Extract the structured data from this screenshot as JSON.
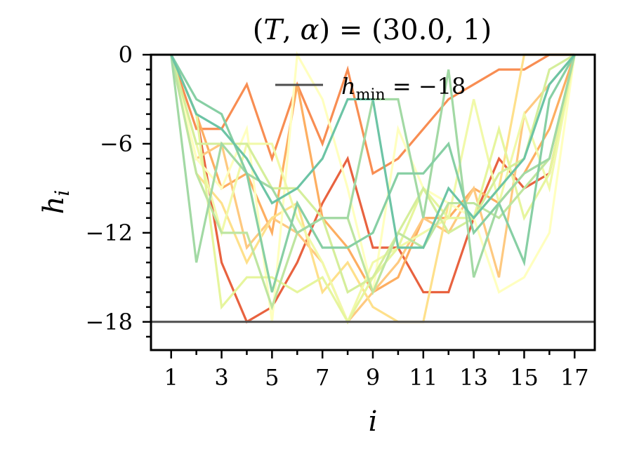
{
  "chart_data": {
    "type": "line",
    "title": "(T, α) = (30.0, 1)",
    "title_parts": {
      "open": "(",
      "T": "T",
      "sep1": ", ",
      "alpha": "α",
      "mid": ") = (30.0, 1)"
    },
    "xlabel": "i",
    "ylabel": "h",
    "ylabel_sub": "i",
    "xlim": [
      0.2,
      17.8
    ],
    "ylim": [
      -19.9,
      0
    ],
    "x": [
      1,
      2,
      3,
      4,
      5,
      6,
      7,
      8,
      9,
      10,
      11,
      12,
      13,
      14,
      15,
      16,
      17
    ],
    "x_ticks": [
      1,
      3,
      5,
      7,
      9,
      11,
      13,
      15,
      17
    ],
    "y_ticks": [
      0,
      -6,
      -12,
      -18
    ],
    "x_tick_labels": [
      "1",
      "3",
      "5",
      "7",
      "9",
      "11",
      "13",
      "15",
      "17"
    ],
    "y_tick_labels": [
      "0",
      "−6",
      "−12",
      "−18"
    ],
    "grid": false,
    "legend_position": "top-center",
    "reference_line": {
      "y": -18,
      "color": "#4d4d4d",
      "label_main": "h",
      "label_sub": "min",
      "label_rest": " = −18"
    },
    "series": [
      {
        "color": "#e8623f",
        "values": [
          0,
          -4,
          -14,
          -18,
          -17,
          -14,
          -10,
          -7,
          -13,
          -13,
          -16,
          -16,
          -11,
          -7,
          -9,
          -8,
          0
        ]
      },
      {
        "color": "#f88d52",
        "values": [
          0,
          -5,
          -5,
          -2,
          -7,
          -2,
          -6,
          -1,
          -8,
          -7,
          -5,
          -3,
          -2,
          -1,
          -1,
          0,
          0
        ]
      },
      {
        "color": "#fdae61",
        "values": [
          0,
          -4,
          -9,
          -8,
          -12,
          -2,
          -11,
          -13,
          -16,
          -15,
          -11,
          -11,
          -9,
          -10,
          -8,
          -5,
          0
        ]
      },
      {
        "color": "#fec980",
        "values": [
          0,
          -7,
          -6,
          -13,
          -11,
          -12,
          -14,
          -18,
          -16,
          -14,
          -11,
          -12,
          -9,
          -15,
          -4,
          -2,
          0
        ]
      },
      {
        "color": "#fee08b",
        "values": [
          0,
          -8,
          -10,
          -14,
          -11,
          -10,
          -16,
          -14,
          -17,
          -18,
          -18,
          -10,
          -11,
          -9,
          0,
          0,
          0
        ]
      },
      {
        "color": "#ffffbf",
        "values": [
          0,
          -7,
          -9,
          -5,
          -18,
          0,
          -3,
          -9,
          -16,
          -5,
          -9,
          -10,
          -11,
          -16,
          -15,
          -12,
          0
        ]
      },
      {
        "color": "#f1f9a9",
        "values": [
          0,
          -6,
          -12,
          -6,
          -6,
          -11,
          -14,
          -18,
          -14,
          -13,
          -12,
          -11,
          -3,
          -10,
          -4,
          -9,
          0
        ]
      },
      {
        "color": "#e6f59d",
        "values": [
          0,
          -4,
          -17,
          -15,
          -15,
          -16,
          -15,
          -18,
          -15,
          -13,
          -9,
          -11,
          -11,
          -5,
          -11,
          -8,
          0
        ]
      },
      {
        "color": "#d5ee9b",
        "values": [
          0,
          -6,
          -6,
          -6,
          -9,
          -9,
          -11,
          -16,
          -15,
          -12,
          -9,
          -12,
          -11,
          -8,
          -7,
          -1,
          0
        ]
      },
      {
        "color": "#bee5a0",
        "values": [
          0,
          -8,
          -12,
          -12,
          -17,
          -12,
          -11,
          -11,
          -16,
          -12,
          -13,
          -10,
          -10,
          -11,
          -9,
          -7,
          0
        ]
      },
      {
        "color": "#a2d9a4",
        "values": [
          0,
          -14,
          -6,
          -8,
          -9,
          -12,
          -11,
          -11,
          -3,
          -3,
          -11,
          -1,
          -15,
          -10,
          -8,
          -7,
          0
        ]
      },
      {
        "color": "#87cfa4",
        "values": [
          0,
          -3,
          -4,
          -8,
          -16,
          -10,
          -13,
          -13,
          -12,
          -8,
          -8,
          -6,
          -12,
          -10,
          -14,
          -3,
          0
        ]
      },
      {
        "color": "#6cc4a5",
        "values": [
          0,
          -4,
          -5,
          -7,
          -10,
          -9,
          -7,
          -3,
          -3,
          -13,
          -13,
          -9,
          -11,
          -9,
          -7,
          -2,
          0
        ]
      }
    ]
  }
}
